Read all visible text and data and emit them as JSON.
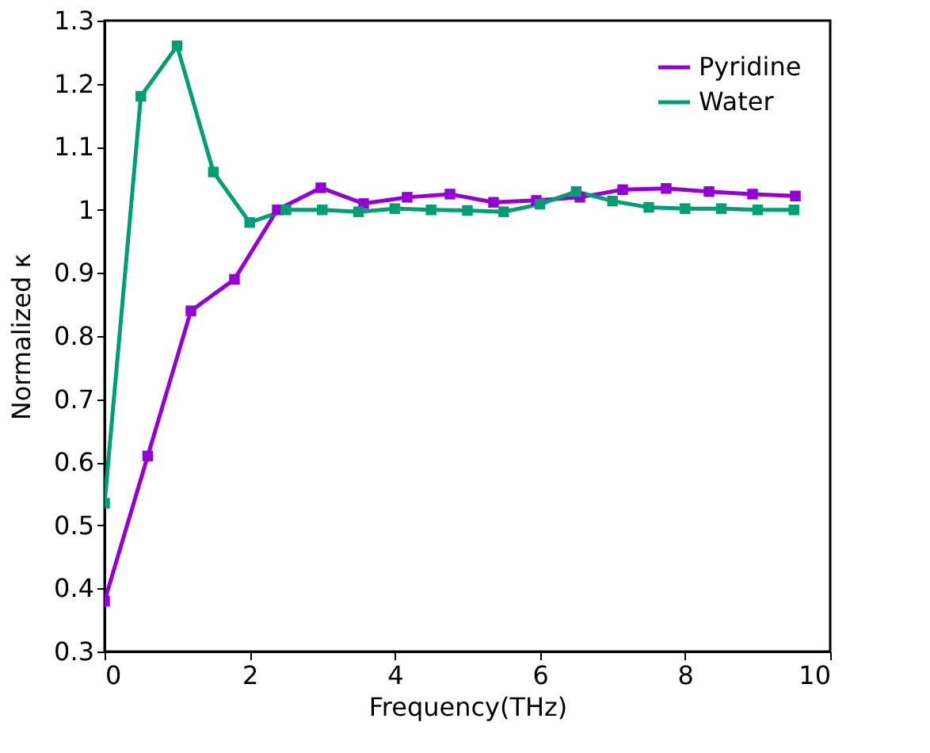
{
  "chart_data": {
    "type": "line",
    "xlabel": "Frequency(THz)",
    "ylabel": "Normalized κ",
    "xlim": [
      0,
      10
    ],
    "xticks": [
      0,
      2,
      4,
      6,
      8,
      10
    ],
    "ylim": [
      0.3,
      1.3
    ],
    "yticks": [
      0.3,
      0.4,
      0.5,
      0.6,
      0.7,
      0.8,
      0.9,
      1,
      1.1,
      1.2,
      1.3
    ],
    "grid": false,
    "legend": "top right",
    "marker": "square",
    "line_style": "solid",
    "series": [
      {
        "name": "Pyridine",
        "color": "#9400d3",
        "x": [
          0,
          0.595,
          1.19,
          1.79,
          2.38,
          2.98,
          3.57,
          4.17,
          4.76,
          5.36,
          5.95,
          6.55,
          7.14,
          7.74,
          8.33,
          8.93,
          9.52
        ],
        "values": [
          0.38,
          0.61,
          0.84,
          0.89,
          1.0,
          1.035,
          1.01,
          1.02,
          1.025,
          1.012,
          1.015,
          1.02,
          1.032,
          1.034,
          1.029,
          1.025,
          1.022
        ]
      },
      {
        "name": "Water",
        "color": "#009e73",
        "x": [
          0,
          0.5,
          1,
          1.5,
          2,
          2.5,
          3,
          3.5,
          4,
          4.5,
          5,
          5.5,
          6,
          6.5,
          7,
          7.5,
          8,
          8.5,
          9,
          9.5
        ],
        "values": [
          0.535,
          1.18,
          1.26,
          1.06,
          0.98,
          1.0,
          1.0,
          0.997,
          1.002,
          1.0,
          0.999,
          0.997,
          1.009,
          1.029,
          1.014,
          1.004,
          1.002,
          1.002,
          1.0,
          1.0
        ]
      }
    ]
  }
}
